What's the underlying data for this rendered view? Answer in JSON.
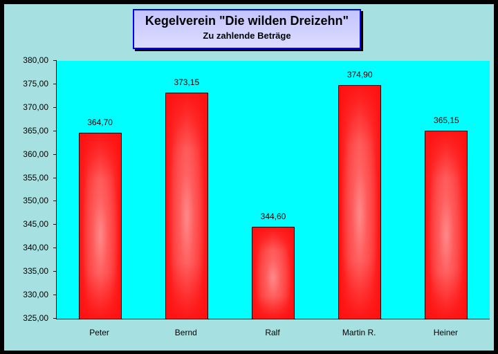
{
  "chart_data": {
    "type": "bar",
    "title": "Kegelverein \"Die wilden Dreizehn\"",
    "subtitle": "Zu zahlende Beträge",
    "categories": [
      "Peter",
      "Bernd",
      "Ralf",
      "Martin R.",
      "Heiner"
    ],
    "values": [
      364.7,
      373.15,
      344.6,
      374.9,
      365.15
    ],
    "value_labels": [
      "364,70",
      "373,15",
      "344,60",
      "374,90",
      "365,15"
    ],
    "xlabel": "",
    "ylabel": "",
    "ylim": [
      325,
      380
    ],
    "yticks": [
      "380,00",
      "375,00",
      "370,00",
      "365,00",
      "360,00",
      "355,00",
      "350,00",
      "345,00",
      "340,00",
      "335,00",
      "330,00",
      "325,00"
    ],
    "grid": false,
    "legend": "none",
    "colors": {
      "bar": "#ff1010",
      "plot_bg": "#00ffff",
      "chart_bg": "#a6e0e0",
      "title_border": "#0000ff",
      "title_bg": "#d0d0ff"
    }
  },
  "title": {
    "main": "Kegelverein \"Die wilden Dreizehn\"",
    "sub": "Zu zahlende Beträge"
  },
  "yaxis": [
    "380,00",
    "375,00",
    "370,00",
    "365,00",
    "360,00",
    "355,00",
    "350,00",
    "345,00",
    "340,00",
    "335,00",
    "330,00",
    "325,00"
  ],
  "bars": [
    {
      "name": "Peter",
      "label": "364,70"
    },
    {
      "name": "Bernd",
      "label": "373,15"
    },
    {
      "name": "Ralf",
      "label": "344,60"
    },
    {
      "name": "Martin R.",
      "label": "374,90"
    },
    {
      "name": "Heiner",
      "label": "365,15"
    }
  ]
}
